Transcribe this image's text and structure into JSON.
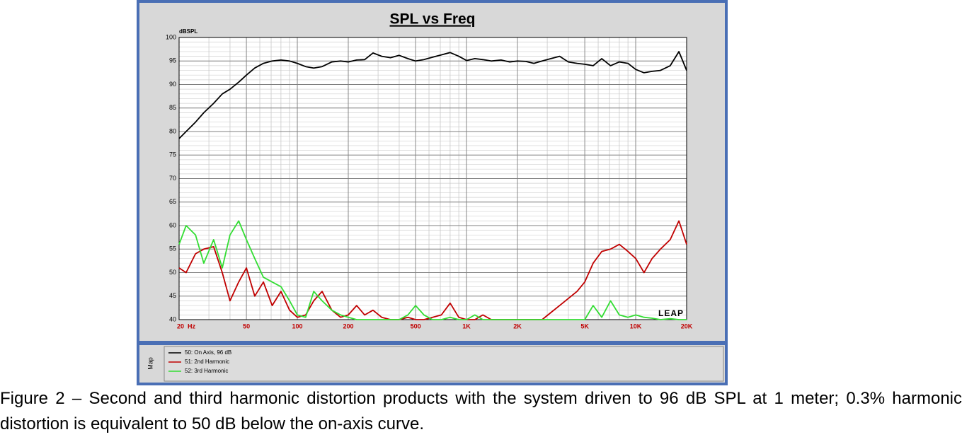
{
  "chart_data": {
    "type": "line",
    "title": "SPL vs Freq",
    "y_label": "dBSPL",
    "logo": "LEAP",
    "legend_title": "Map",
    "x": [
      20,
      22,
      25,
      28,
      32,
      36,
      40,
      45,
      50,
      56,
      63,
      71,
      80,
      90,
      100,
      112,
      125,
      140,
      160,
      180,
      200,
      224,
      250,
      280,
      315,
      355,
      400,
      450,
      500,
      560,
      630,
      710,
      800,
      900,
      1000,
      1120,
      1250,
      1400,
      1600,
      1800,
      2000,
      2240,
      2500,
      2800,
      3150,
      3550,
      4000,
      4500,
      5000,
      5600,
      6300,
      7100,
      8000,
      9000,
      10000,
      11200,
      12500,
      14000,
      16000,
      18000,
      20000
    ],
    "series": [
      {
        "name": "50: On Axis, 96 dB",
        "color": "#000000",
        "values": [
          78.5,
          80,
          82,
          84,
          86,
          88,
          89,
          90.5,
          92,
          93.5,
          94.5,
          95,
          95.2,
          95,
          94.5,
          93.8,
          93.5,
          93.8,
          94.8,
          95,
          94.8,
          95.2,
          95.3,
          96.7,
          96,
          95.7,
          96.2,
          95.5,
          95,
          95.3,
          95.8,
          96.3,
          96.8,
          96,
          95.1,
          95.5,
          95.3,
          95,
          95.2,
          94.8,
          95,
          94.9,
          94.5,
          95,
          95.5,
          96,
          94.8,
          94.5,
          94.3,
          94,
          95.5,
          94,
          94.8,
          94.5,
          93.2,
          92.5,
          92.8,
          93,
          94,
          97,
          93
        ]
      },
      {
        "name": "51: 2nd Harmonic",
        "color": "#c00000",
        "values": [
          51,
          50,
          54,
          55,
          55.5,
          50,
          44,
          48,
          51,
          45,
          48,
          43,
          46,
          42,
          40.5,
          41,
          44,
          46,
          42,
          40.5,
          41,
          43,
          41,
          42,
          40.5,
          40,
          40,
          40.5,
          40,
          40,
          40.5,
          41,
          43.5,
          40.5,
          40,
          40,
          41,
          40,
          40,
          40,
          40,
          40,
          40,
          40,
          41.5,
          43,
          44.5,
          46,
          48,
          52,
          54.5,
          55,
          56,
          54.5,
          53,
          50,
          53,
          55,
          57,
          61,
          56
        ]
      },
      {
        "name": "52: 3rd Harmonic",
        "color": "#33dd33",
        "values": [
          56,
          60,
          58,
          52,
          57,
          51,
          58,
          61,
          57,
          53,
          49,
          48,
          47,
          44,
          41,
          40.5,
          46,
          44,
          42,
          41,
          40.5,
          40,
          40,
          40,
          40,
          40,
          40,
          41,
          43,
          41,
          40,
          40,
          40.5,
          40,
          40,
          41,
          40,
          40,
          40,
          40,
          40,
          40,
          40,
          40,
          40,
          40,
          40,
          40,
          40,
          43,
          40.5,
          44,
          41,
          40.5,
          41,
          40.5,
          40.3,
          40,
          40.2,
          40,
          40
        ]
      }
    ],
    "xscale": "log",
    "xlim": [
      20,
      20000
    ],
    "xticks": [
      {
        "value": 20,
        "label": "20  Hz"
      },
      50,
      100,
      200,
      500,
      {
        "value": 1000,
        "label": "1K"
      },
      {
        "value": 2000,
        "label": "2K"
      },
      {
        "value": 5000,
        "label": "5K"
      },
      {
        "value": 10000,
        "label": "10K"
      },
      {
        "value": 20000,
        "label": "20K"
      }
    ],
    "ylim": [
      40,
      100
    ],
    "yticks": [
      40,
      45,
      50,
      55,
      60,
      65,
      70,
      75,
      80,
      85,
      90,
      95,
      100
    ],
    "grid": true
  },
  "caption": "Figure 2 – Second and third harmonic distortion products with the system driven to 96 dB SPL at 1 meter; 0.3% harmonic distortion is equivalent to 50 dB below the on-axis curve."
}
